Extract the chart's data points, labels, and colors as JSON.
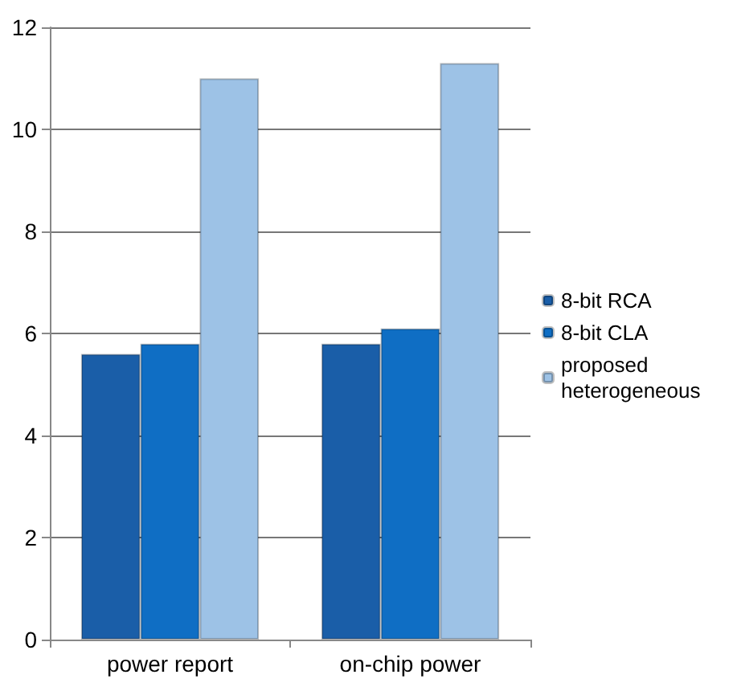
{
  "chart_data": {
    "type": "bar",
    "categories": [
      "power report",
      "on-chip power"
    ],
    "series": [
      {
        "name": "8-bit RCA",
        "color": "#1a5ea8",
        "values": [
          5.6,
          5.8
        ]
      },
      {
        "name": "8-bit CLA",
        "color": "#0f6ec4",
        "values": [
          5.8,
          6.1
        ]
      },
      {
        "name": "proposed heterogeneous",
        "color": "#9dc2e6",
        "values": [
          11.0,
          11.3
        ]
      }
    ],
    "ylim": [
      0,
      12
    ],
    "yticks": [
      0,
      2,
      4,
      6,
      8,
      10,
      12
    ],
    "grid": "y",
    "legend": "right"
  }
}
